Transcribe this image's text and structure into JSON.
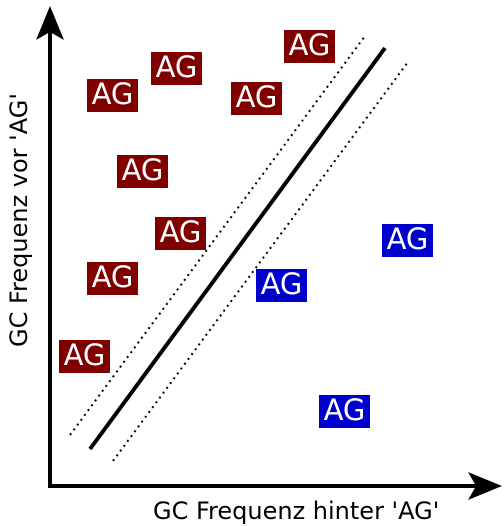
{
  "axes": {
    "x_label": "GC Frequenz hinter 'AG'",
    "y_label": "GC Frequenz vor 'AG'"
  },
  "colors": {
    "red_box": "#800000",
    "blue_box": "#0000cc",
    "line": "#000000"
  },
  "markers": [
    {
      "text": "AG",
      "group": "above"
    },
    {
      "text": "AG",
      "group": "above"
    },
    {
      "text": "AG",
      "group": "above"
    },
    {
      "text": "AG",
      "group": "above"
    },
    {
      "text": "AG",
      "group": "above"
    },
    {
      "text": "AG",
      "group": "above"
    },
    {
      "text": "AG",
      "group": "above"
    },
    {
      "text": "AG",
      "group": "above"
    },
    {
      "text": "AG",
      "group": "below"
    },
    {
      "text": "AG",
      "group": "below"
    },
    {
      "text": "AG",
      "group": "below"
    }
  ]
}
